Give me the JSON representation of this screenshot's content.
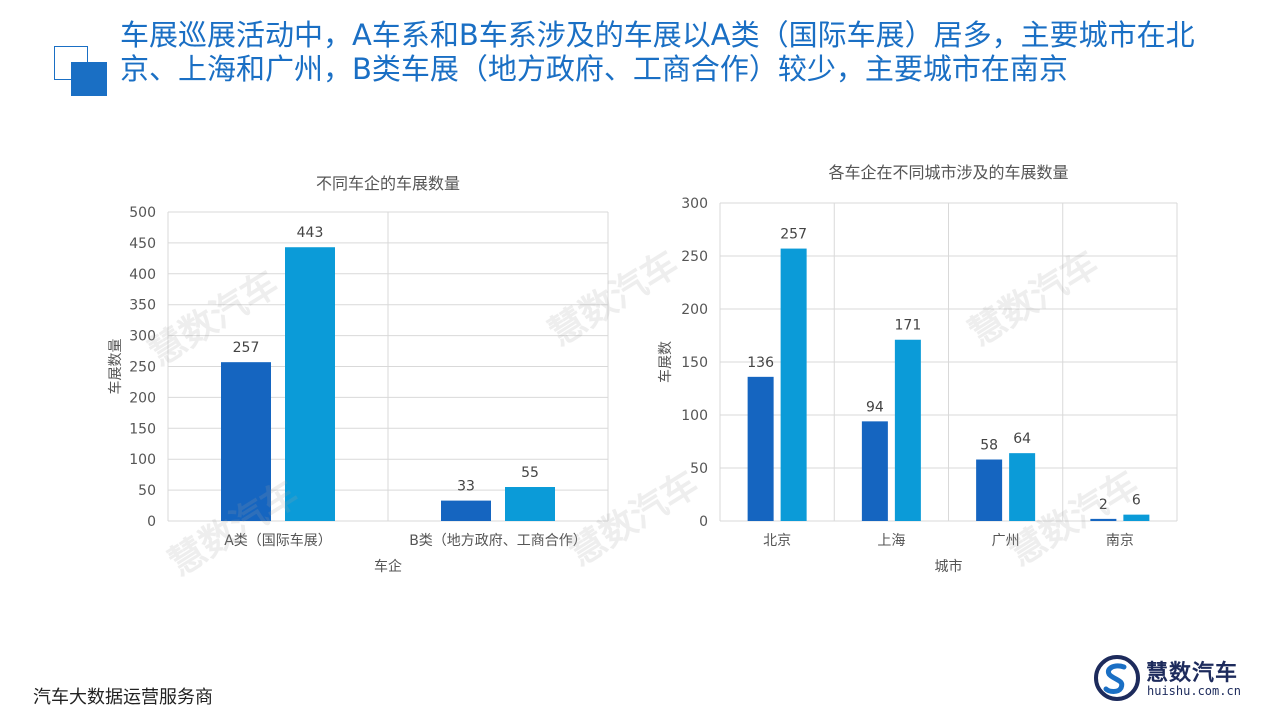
{
  "title": "车展巡展活动中，A车系和B车系涉及的车展以A类（国际车展）居多，主要城市在北京、上海和广州，B类车展（地方政府、工商合作）较少，主要城市在南京",
  "footer": "汽车大数据运营服务商",
  "logo": {
    "name": "慧数汽车",
    "url": "huishu.com.cn"
  },
  "watermark_text": "慧数汽车",
  "colors": {
    "accent": "#1a6fc4",
    "series1": "#1565c0",
    "series2": "#0b9bd8"
  },
  "chart_data": [
    {
      "type": "bar",
      "title": "不同车企的车展数量",
      "xlabel": "车企",
      "ylabel": "车展数量",
      "categories": [
        "A类（国际车展）",
        "B类（地方政府、工商合作）"
      ],
      "series": [
        {
          "values": [
            257,
            33
          ]
        },
        {
          "values": [
            443,
            55
          ]
        }
      ],
      "ylim": [
        0,
        500
      ],
      "yticks": [
        0,
        50,
        100,
        150,
        200,
        250,
        300,
        350,
        400,
        450,
        500
      ],
      "grid": true
    },
    {
      "type": "bar",
      "title": "各车企在不同城市涉及的车展数量",
      "xlabel": "城市",
      "ylabel": "车展数",
      "categories": [
        "北京",
        "上海",
        "广州",
        "南京"
      ],
      "series": [
        {
          "values": [
            136,
            94,
            58,
            2
          ]
        },
        {
          "values": [
            257,
            171,
            64,
            6
          ]
        }
      ],
      "ylim": [
        0,
        300
      ],
      "yticks": [
        0,
        50,
        100,
        150,
        200,
        250,
        300
      ],
      "grid": true
    }
  ]
}
